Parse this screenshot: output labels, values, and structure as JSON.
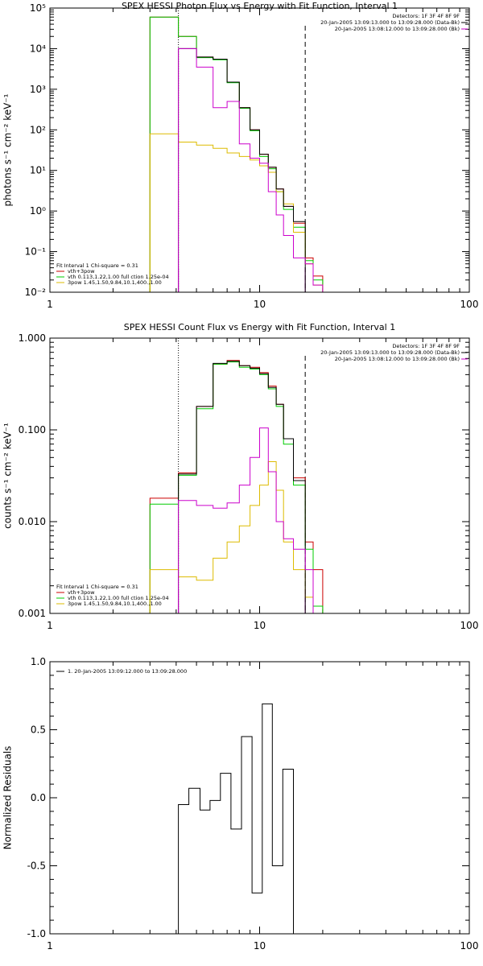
{
  "chart_data": [
    {
      "id": "photon",
      "type": "line",
      "title": "SPEX HESSI Photon Flux vs Energy with Fit Function, Interval 1",
      "ylabel": "photons s⁻¹ cm⁻² keV⁻¹",
      "xscale": "log",
      "yscale": "log",
      "xlim": [
        1,
        100
      ],
      "ylim": [
        0.01,
        100000
      ],
      "xticks": [
        1,
        10,
        100
      ],
      "xtick_labels": [
        "1",
        "10",
        "100"
      ],
      "yticks": [
        0.01,
        0.1,
        1,
        10,
        100,
        1000,
        10000,
        100000
      ],
      "ytick_labels": [
        "10⁻²",
        "10⁻¹",
        "10⁰",
        "10¹",
        "10²",
        "10³",
        "10⁴",
        "10⁵"
      ],
      "vlines": [
        {
          "x": 4.1,
          "style": "dotted",
          "color": "#000000"
        },
        {
          "x": 16.5,
          "style": "dashed",
          "color": "#000000"
        },
        {
          "x": 4.1,
          "style": "solid",
          "color": "#cc00cc"
        },
        {
          "x": 16.5,
          "style": "solid",
          "color": "#cc00cc"
        }
      ],
      "annotation_right": {
        "lines": [
          "Detectors: 1F 3F 4F 8F 9F",
          "20-Jan-2005 13:09:13.000 to 13:09:28.000 (Data-Bk)",
          "20-Jan-2005 13:08:12.000 to 13:09:28.000 (Bk)"
        ],
        "colors": [
          "#000000",
          "#000000",
          "#cc00cc"
        ]
      },
      "legend": {
        "position": "bottom-left",
        "heading": "Fit Interval 1   Chi-square = 0.31",
        "entries": [
          {
            "label": "vth+3pow",
            "color": "#cc0000"
          },
          {
            "label": "vth 0.113,1.22,1.00  full ction 1.25e-04",
            "color": "#00cc00"
          },
          {
            "label": "3pow 1.45,1.50,9.84,10.1,400.,1.00",
            "color": "#ddbb00"
          }
        ]
      },
      "bin_edges": [
        3.0,
        4.1,
        5.0,
        6.0,
        7.0,
        8.0,
        9.0,
        10.0,
        11.0,
        12.0,
        13.0,
        14.5,
        16.5,
        18.0,
        20.0
      ],
      "series": [
        {
          "name": "vth+3pow",
          "color": "#cc0000",
          "values": [
            60000,
            20000,
            6200,
            5500,
            1500,
            350,
            100,
            25,
            12,
            3.5,
            1.3,
            0.5,
            0.07,
            0.025
          ]
        },
        {
          "name": "vth",
          "color": "#00cc00",
          "values": [
            60000,
            20000,
            6000,
            5300,
            1450,
            340,
            95,
            22,
            11,
            3.0,
            1.1,
            0.4,
            0.06,
            0.02
          ]
        },
        {
          "name": "3pow",
          "color": "#ddbb00",
          "values": [
            80,
            50,
            42,
            35,
            27,
            22,
            18,
            13,
            9,
            3.0,
            1.5,
            0.3,
            0.05,
            0.015
          ]
        },
        {
          "name": "Data-Bk",
          "color": "#000000",
          "values": [
            null,
            10000,
            6200,
            5500,
            1500,
            350,
            100,
            25,
            12,
            3.5,
            1.3,
            0.55,
            null,
            null
          ]
        },
        {
          "name": "Bk",
          "color": "#cc00cc",
          "values": [
            null,
            10000,
            3500,
            350,
            500,
            45,
            20,
            15,
            3.0,
            0.8,
            0.25,
            0.07,
            0.05,
            0.015
          ]
        }
      ]
    },
    {
      "id": "count",
      "type": "line",
      "title": "SPEX HESSI Count Flux vs Energy with Fit Function, Interval 1",
      "ylabel": "counts s⁻¹ cm⁻² keV⁻¹",
      "xscale": "log",
      "yscale": "log",
      "xlim": [
        1,
        100
      ],
      "ylim": [
        0.001,
        1.0
      ],
      "xticks": [
        1,
        10,
        100
      ],
      "xtick_labels": [
        "1",
        "10",
        "100"
      ],
      "yticks": [
        0.001,
        0.01,
        0.1,
        1.0
      ],
      "ytick_labels": [
        "0.001",
        "0.010",
        "0.100",
        "1.000"
      ],
      "vlines": [
        {
          "x": 4.1,
          "style": "dotted",
          "color": "#000000"
        },
        {
          "x": 16.5,
          "style": "dashed",
          "color": "#000000"
        },
        {
          "x": 4.1,
          "style": "solid",
          "color": "#cc00cc"
        },
        {
          "x": 16.5,
          "style": "solid",
          "color": "#cc00cc"
        }
      ],
      "annotation_right": {
        "lines": [
          "Detectors: 1F 3F 4F 8F 9F",
          "20-Jan-2005 13:09:13.000 to 13:09:28.000 (Data-Bk)",
          "20-Jan-2005 13:08:12.000 to 13:09:28.000 (Bk)"
        ],
        "colors": [
          "#000000",
          "#000000",
          "#cc00cc"
        ]
      },
      "legend": {
        "position": "bottom-left",
        "heading": "Fit Interval 1   Chi-square = 0.31",
        "entries": [
          {
            "label": "vth+3pow",
            "color": "#cc0000"
          },
          {
            "label": "vth 0.113,1.22,1.00  full ction 1.25e-04",
            "color": "#00cc00"
          },
          {
            "label": "3pow 1.45,1.50,9.84,10.1,400.,1.00",
            "color": "#ddbb00"
          }
        ]
      },
      "bin_edges": [
        3.0,
        4.1,
        5.0,
        6.0,
        7.0,
        8.0,
        9.0,
        10.0,
        11.0,
        12.0,
        13.0,
        14.5,
        16.5,
        18.0,
        20.0
      ],
      "series": [
        {
          "name": "vth+3pow",
          "color": "#cc0000",
          "values": [
            0.018,
            0.034,
            0.18,
            0.52,
            0.57,
            0.5,
            0.48,
            0.42,
            0.3,
            0.19,
            0.08,
            0.03,
            0.006,
            0.003
          ]
        },
        {
          "name": "vth",
          "color": "#00cc00",
          "values": [
            0.0155,
            0.032,
            0.17,
            0.52,
            0.55,
            0.48,
            0.46,
            0.4,
            0.28,
            0.18,
            0.07,
            0.025,
            0.005,
            0.0012
          ]
        },
        {
          "name": "3pow",
          "color": "#ddbb00",
          "values": [
            0.003,
            0.0025,
            0.0023,
            0.004,
            0.006,
            0.009,
            0.015,
            0.025,
            0.045,
            0.022,
            0.006,
            0.003,
            0.0015,
            0.001
          ]
        },
        {
          "name": "Data-Bk",
          "color": "#000000",
          "values": [
            null,
            0.033,
            0.18,
            0.53,
            0.56,
            0.5,
            0.47,
            0.41,
            0.29,
            0.19,
            0.08,
            0.028,
            null,
            null
          ]
        },
        {
          "name": "Bk",
          "color": "#cc00cc",
          "values": [
            null,
            0.017,
            0.015,
            0.014,
            0.016,
            0.025,
            0.05,
            0.105,
            0.035,
            0.01,
            0.0065,
            0.005,
            0.003,
            0.001
          ]
        }
      ]
    },
    {
      "id": "resid",
      "type": "line",
      "title": "",
      "ylabel": "Normalized Residuals",
      "xscale": "log",
      "yscale": "linear",
      "xlim": [
        1,
        100
      ],
      "ylim": [
        -1.0,
        1.0
      ],
      "xticks": [
        1,
        10,
        100
      ],
      "xtick_labels": [
        "1",
        "10",
        "100"
      ],
      "yticks": [
        -1.0,
        -0.5,
        0.0,
        0.5,
        1.0
      ],
      "ytick_labels": [
        "-1.0",
        "-0.5",
        "0.0",
        "0.5",
        "1.0"
      ],
      "legend": {
        "position": "top-left",
        "heading": "",
        "entries": [
          {
            "label": "1. 20-Jan-2005 13:09:12.000 to 13:09:28.000",
            "color": "#000000"
          }
        ]
      },
      "bin_edges": [
        4.1,
        4.6,
        5.2,
        5.8,
        6.5,
        7.3,
        8.2,
        9.2,
        10.3,
        11.5,
        12.9,
        14.5,
        16.4
      ],
      "series": [
        {
          "name": "1. 20-Jan-2005 13:09:12.000 to 13:09:28.000",
          "color": "#000000",
          "values": [
            -0.05,
            0.07,
            -0.09,
            -0.02,
            0.18,
            -0.23,
            0.45,
            -0.7,
            0.69,
            -0.5,
            0.21,
            null
          ]
        }
      ]
    }
  ]
}
